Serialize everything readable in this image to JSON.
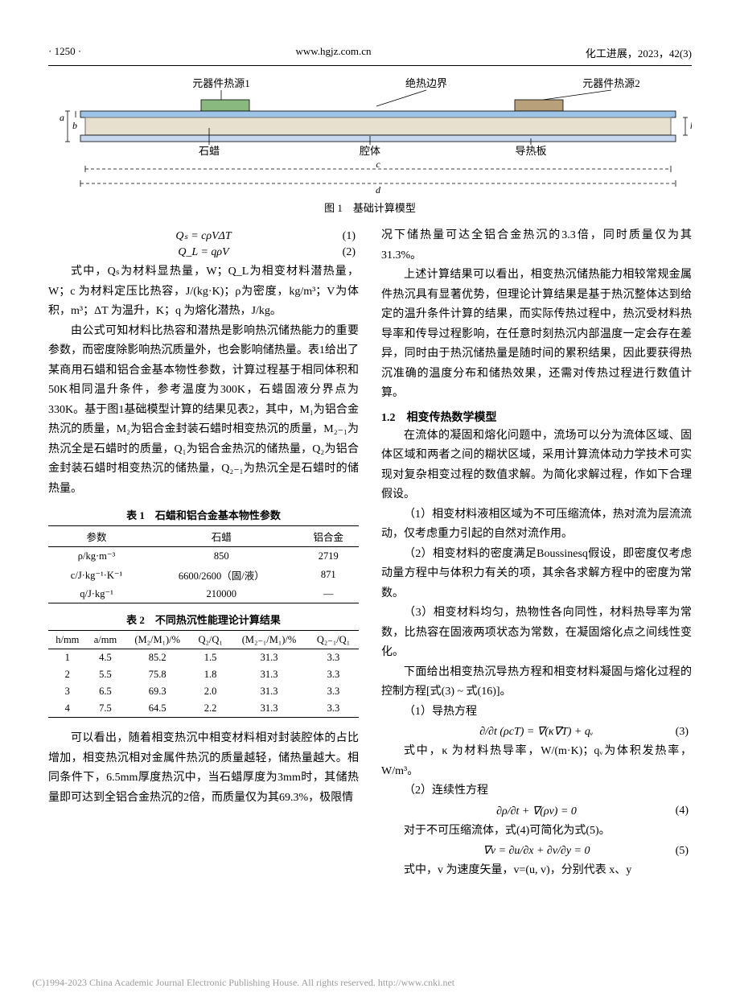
{
  "header": {
    "page": "· 1250 ·",
    "site": "www.hgjz.com.cn",
    "journal": "化工进展，2023，42(3)"
  },
  "figure1": {
    "labels": {
      "heat_source_1": "元器件热源1",
      "adiabatic_boundary": "绝热边界",
      "heat_source_2": "元器件热源2",
      "paraffin": "石蜡",
      "cavity": "腔体",
      "heat_plate": "导热板",
      "a": "a",
      "b": "b",
      "c": "c",
      "d": "d",
      "h": "h"
    },
    "colors": {
      "hs1_fill": "#89b97e",
      "hs2_fill": "#b7a07a",
      "top_plate": "#9dc4e6",
      "paraffin_fill": "#e7e0cf",
      "cavity_border": "#7f7f7f",
      "heat_plate_fill": "#c7d8ee",
      "dim_line": "#000000"
    },
    "caption": "图 1　基础计算模型"
  },
  "equations": {
    "eq1": "Qₛ = cρVΔT",
    "eq1_num": "(1)",
    "eq2": "Q_L = qρV",
    "eq2_num": "(2)",
    "eq3": "∂/∂t (ρcT) = ∇(κ∇T) + qᵥ",
    "eq3_num": "(3)",
    "eq4": "∂ρ/∂t + ∇(ρv) = 0",
    "eq4_num": "(4)",
    "eq5": "∇v = ∂u/∂x + ∂v/∂y = 0",
    "eq5_num": "(5)"
  },
  "left_text": {
    "p1": "式中，Qₛ为材料显热量，W；Q_L为相变材料潜热量，W；c 为材料定压比热容，J/(kg·K)；ρ为密度，kg/m³；V为体积，m³；ΔT 为温升，K；q 为熔化潜热，J/kg。",
    "p2": "由公式可知材料比热容和潜热是影响热沉储热能力的重要参数，而密度除影响热沉质量外，也会影响储热量。表1给出了某商用石蜡和铝合金基本物性参数，计算过程基于相同体积和50K相同温升条件，参考温度为300K，石蜡固液分界点为330K。基于图1基础模型计算的结果见表2，其中，M₁为铝合金热沉的质量，M₂为铝合金封装石蜡时相变热沉的质量，M₂₋₁为热沉全是石蜡时的质量，Q₁为铝合金热沉的储热量，Q₂为铝合金封装石蜡时相变热沉的储热量，Q₂₋₁为热沉全是石蜡时的储热量。",
    "p3": "可以看出，随着相变热沉中相变材料相对封装腔体的占比增加，相变热沉相对金属件热沉的质量越轻，储热量越大。相同条件下，6.5mm厚度热沉中，当石蜡厚度为3mm时，其储热量即可达到全铝合金热沉的2倍，而质量仅为其69.3%，极限情"
  },
  "right_text": {
    "p1": "况下储热量可达全铝合金热沉的3.3倍，同时质量仅为其31.3%。",
    "p2": "上述计算结果可以看出，相变热沉储热能力相较常规金属件热沉具有显著优势，但理论计算结果是基于热沉整体达到给定的温升条件计算的结果，而实际传热过程中，热沉受材料热导率和传导过程影响，在任意时刻热沉内部温度一定会存在差异，同时由于热沉储热量是随时间的累积结果，因此要获得热沉准确的温度分布和储热效果，还需对传热过程进行数值计算。",
    "sec12": "1.2　相变传热数学模型",
    "p3": "在流体的凝固和熔化问题中，流场可以分为流体区域、固体区域和两者之间的糊状区域，采用计算流体动力学技术可实现对复杂相变过程的数值求解。为简化求解过程，作如下合理假设。",
    "p4": "（1）相变材料液相区域为不可压缩流体，热对流为层流流动，仅考虑重力引起的自然对流作用。",
    "p5": "（2）相变材料的密度满足Boussinesq假设，即密度仅考虑动量方程中与体积力有关的项，其余各求解方程中的密度为常数。",
    "p6": "（3）相变材料均匀，热物性各向同性，材料热导率为常数，比热容在固液两项状态为常数，在凝固熔化点之间线性变化。",
    "p7": "下面给出相变热沉导热方程和相变材料凝固与熔化过程的控制方程[式(3) ~ 式(16)]。",
    "p8": "（1）导热方程",
    "p9": "式中，κ 为材料热导率，W/(m·K)；qᵥ为体积发热率，W/m³。",
    "p10": "（2）连续性方程",
    "p11": "对于不可压缩流体，式(4)可简化为式(5)。",
    "p12": "式中，v 为速度矢量，v=(u, v)，分别代表 x、y"
  },
  "table1": {
    "title": "表 1　石蜡和铝合金基本物性参数",
    "columns": [
      "参数",
      "石蜡",
      "铝合金"
    ],
    "rows": [
      [
        "ρ/kg·m⁻³",
        "850",
        "2719"
      ],
      [
        "c/J·kg⁻¹·K⁻¹",
        "6600/2600（固/液）",
        "871"
      ],
      [
        "q/J·kg⁻¹",
        "210000",
        "—"
      ]
    ]
  },
  "table2": {
    "title": "表 2　不同热沉性能理论计算结果",
    "columns": [
      "h/mm",
      "a/mm",
      "(M₂/M₁)/%",
      "Q₂/Q₁",
      "(M₂₋₁/M₁)/%",
      "Q₂₋₁/Q₁"
    ],
    "rows": [
      [
        "1",
        "4.5",
        "85.2",
        "1.5",
        "31.3",
        "3.3"
      ],
      [
        "2",
        "5.5",
        "75.8",
        "1.8",
        "31.3",
        "3.3"
      ],
      [
        "3",
        "6.5",
        "69.3",
        "2.0",
        "31.3",
        "3.3"
      ],
      [
        "4",
        "7.5",
        "64.5",
        "2.2",
        "31.3",
        "3.3"
      ]
    ]
  },
  "footer": "(C)1994-2023 China Academic Journal Electronic Publishing House. All rights reserved.    http://www.cnki.net"
}
